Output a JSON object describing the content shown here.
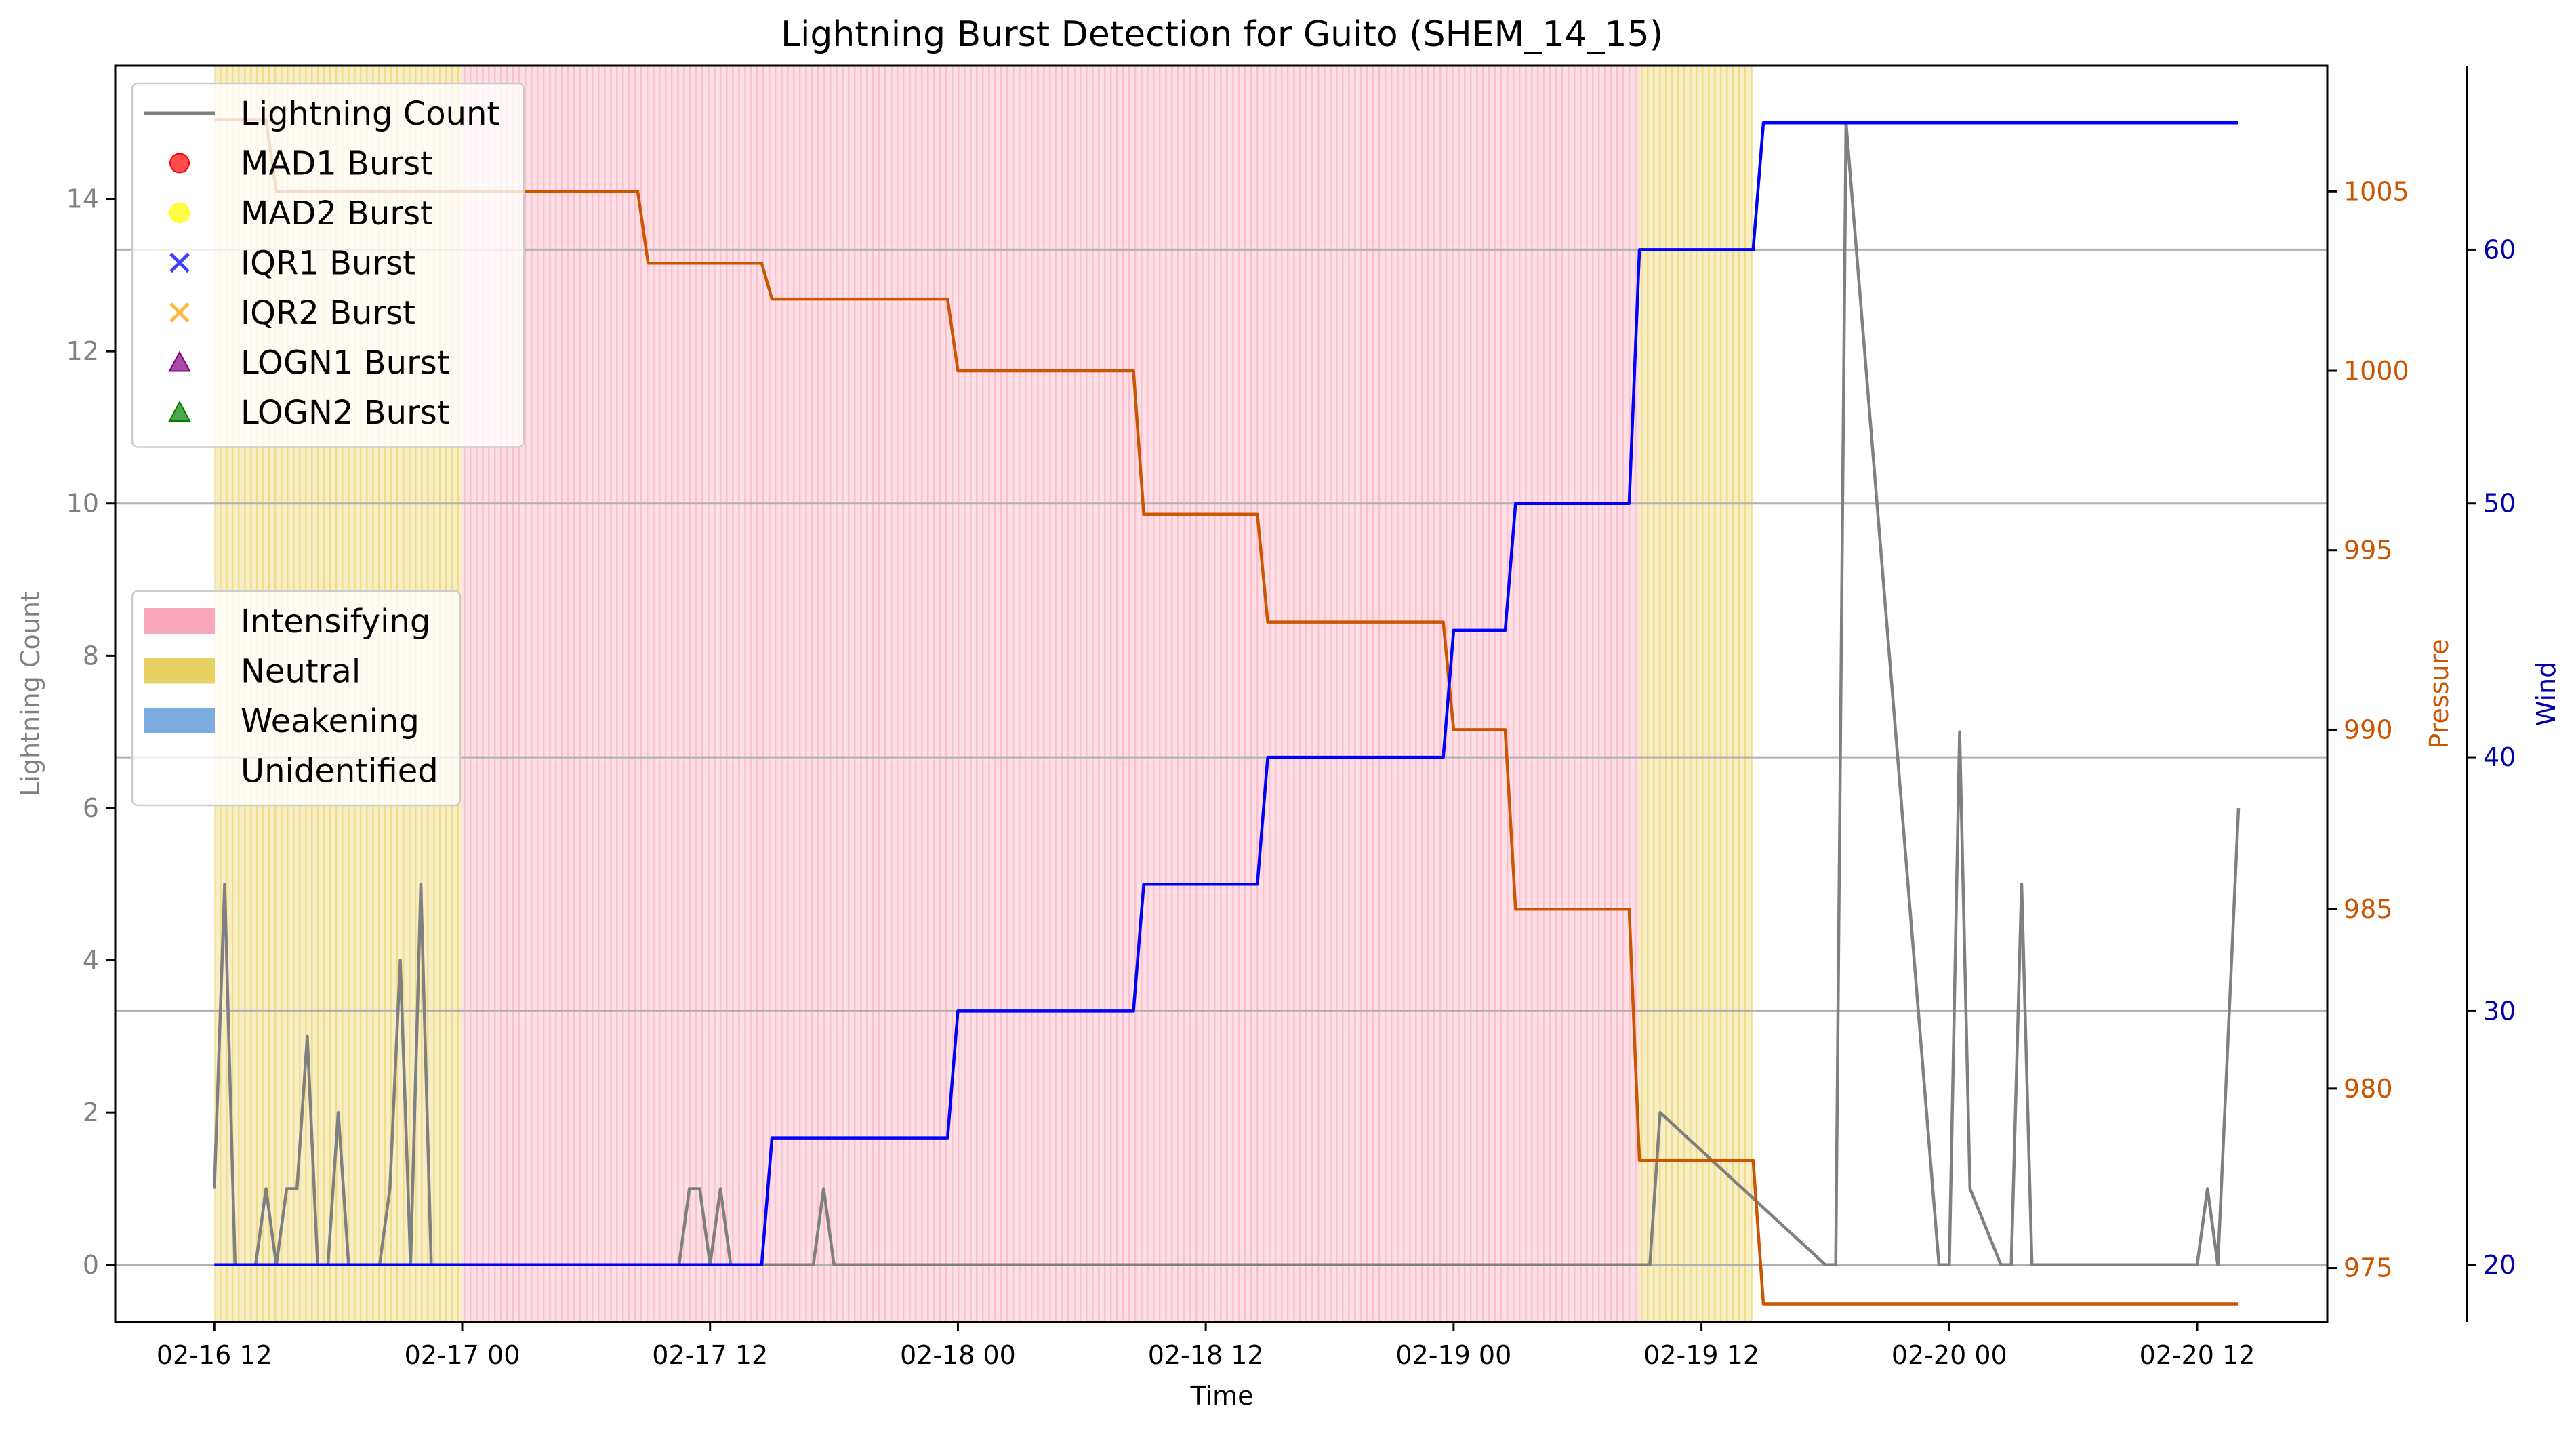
{
  "chart_data": {
    "type": "line",
    "title": "Lightning Burst Detection for Guito (SHEM_14_15)",
    "xlabel": "Time",
    "x_tick_labels": [
      "02-16 12",
      "02-17 00",
      "02-17 12",
      "02-18 00",
      "02-18 12",
      "02-19 00",
      "02-19 12",
      "02-20 00",
      "02-20 12"
    ],
    "x_tick_hours": [
      0,
      12,
      24,
      36,
      48,
      60,
      72,
      84,
      96
    ],
    "x_range_hours": [
      -4.8,
      102.3
    ],
    "axes": {
      "left": {
        "label": "Lightning Count",
        "range": [
          -0.75,
          15.75
        ],
        "ticks": [
          0,
          2,
          4,
          6,
          8,
          10,
          12,
          14
        ],
        "color": "#808080"
      },
      "pressure": {
        "label": "Pressure",
        "range": [
          973.5,
          1008.5
        ],
        "ticks": [
          975,
          980,
          985,
          990,
          995,
          1000,
          1005
        ],
        "color": "#cc5500"
      },
      "wind": {
        "label": "Wind",
        "range": [
          17.75,
          67.25
        ],
        "ticks": [
          20,
          30,
          40,
          50,
          60
        ],
        "color": "#0000aa"
      }
    },
    "grid_wind_values": [
      20,
      30,
      40,
      50,
      60
    ],
    "series": [
      {
        "name": "Lightning Count",
        "axis": "left",
        "color": "#808080",
        "x_hours": [
          0,
          0.5,
          1,
          1.5,
          2,
          2.5,
          3,
          3.5,
          4,
          4.5,
          5,
          5.5,
          6,
          6.5,
          7,
          7.5,
          8,
          8.5,
          9,
          9.5,
          10,
          10.5,
          11,
          11.5,
          12,
          22.5,
          23,
          23.5,
          24,
          24.5,
          25,
          29,
          29.5,
          30,
          69,
          69.5,
          70,
          78,
          78.5,
          79,
          83.5,
          84,
          84.5,
          85,
          86.5,
          87,
          87.5,
          88,
          95.5,
          96,
          96.5,
          97,
          98
        ],
        "values": [
          1,
          5,
          0,
          0,
          0,
          1,
          0,
          1,
          1,
          3,
          0,
          0,
          2,
          0,
          0,
          0,
          0,
          1,
          4,
          0,
          5,
          0,
          0,
          0,
          0,
          0,
          1,
          1,
          0,
          1,
          0,
          0,
          1,
          0,
          0,
          0,
          2,
          0,
          0,
          15,
          0,
          0,
          7,
          1,
          0,
          0,
          5,
          0,
          0,
          0,
          1,
          0,
          6
        ]
      },
      {
        "name": "Pressure",
        "axis": "pressure",
        "color": "#cc5500",
        "x_hours": [
          0,
          2.5,
          3,
          20.5,
          21,
          26.5,
          27,
          35.5,
          36,
          44.5,
          45,
          50.5,
          51,
          59.5,
          60,
          62.5,
          63,
          68.5,
          69,
          74.5,
          75,
          98
        ],
        "values": [
          1007,
          1007,
          1005,
          1005,
          1003,
          1003,
          1002,
          1002,
          1000,
          1000,
          996,
          996,
          993,
          993,
          990,
          990,
          985,
          985,
          978,
          978,
          974,
          974
        ]
      },
      {
        "name": "Wind",
        "axis": "wind",
        "color": "#0000ff",
        "x_hours": [
          0,
          26.5,
          27,
          35.5,
          36,
          44.5,
          45,
          50.5,
          51,
          59.5,
          60,
          62.5,
          63,
          68.5,
          69,
          74.5,
          75,
          98
        ],
        "values": [
          20,
          20,
          25,
          25,
          30,
          30,
          35,
          35,
          40,
          40,
          45,
          45,
          50,
          50,
          60,
          60,
          65,
          65
        ]
      }
    ],
    "background_shading": [
      {
        "label": "Neutral",
        "start_hours": 0,
        "end_hours": 12,
        "color": "#e6cf5a"
      },
      {
        "label": "Intensifying",
        "start_hours": 12,
        "end_hours": 69,
        "color": "#f9a3b7"
      },
      {
        "label": "Neutral",
        "start_hours": 69,
        "end_hours": 74.5,
        "color": "#e6cf5a"
      }
    ],
    "legend_markers": {
      "title": "",
      "placement": "upper left",
      "entries": [
        {
          "label": "Lightning Count",
          "symbol": "line",
          "color": "#808080"
        },
        {
          "label": "MAD1 Burst",
          "symbol": "circle",
          "color": "#ff0000"
        },
        {
          "label": "MAD2 Burst",
          "symbol": "circle",
          "color": "#ffff00"
        },
        {
          "label": "IQR1 Burst",
          "symbol": "x",
          "color": "#0000ff"
        },
        {
          "label": "IQR2 Burst",
          "symbol": "x",
          "color": "#ffa500"
        },
        {
          "label": "LOGN1 Burst",
          "symbol": "triangle",
          "color": "#800080"
        },
        {
          "label": "LOGN2 Burst",
          "symbol": "triangle",
          "color": "#008000"
        }
      ]
    },
    "legend_phases": {
      "placement": "center left",
      "entries": [
        {
          "label": "Intensifying",
          "color": "#f9a3b7"
        },
        {
          "label": "Neutral",
          "color": "#e6cf5a"
        },
        {
          "label": "Weakening",
          "color": "#76a9de"
        },
        {
          "label": "Unidentified",
          "color": "none"
        }
      ]
    }
  }
}
